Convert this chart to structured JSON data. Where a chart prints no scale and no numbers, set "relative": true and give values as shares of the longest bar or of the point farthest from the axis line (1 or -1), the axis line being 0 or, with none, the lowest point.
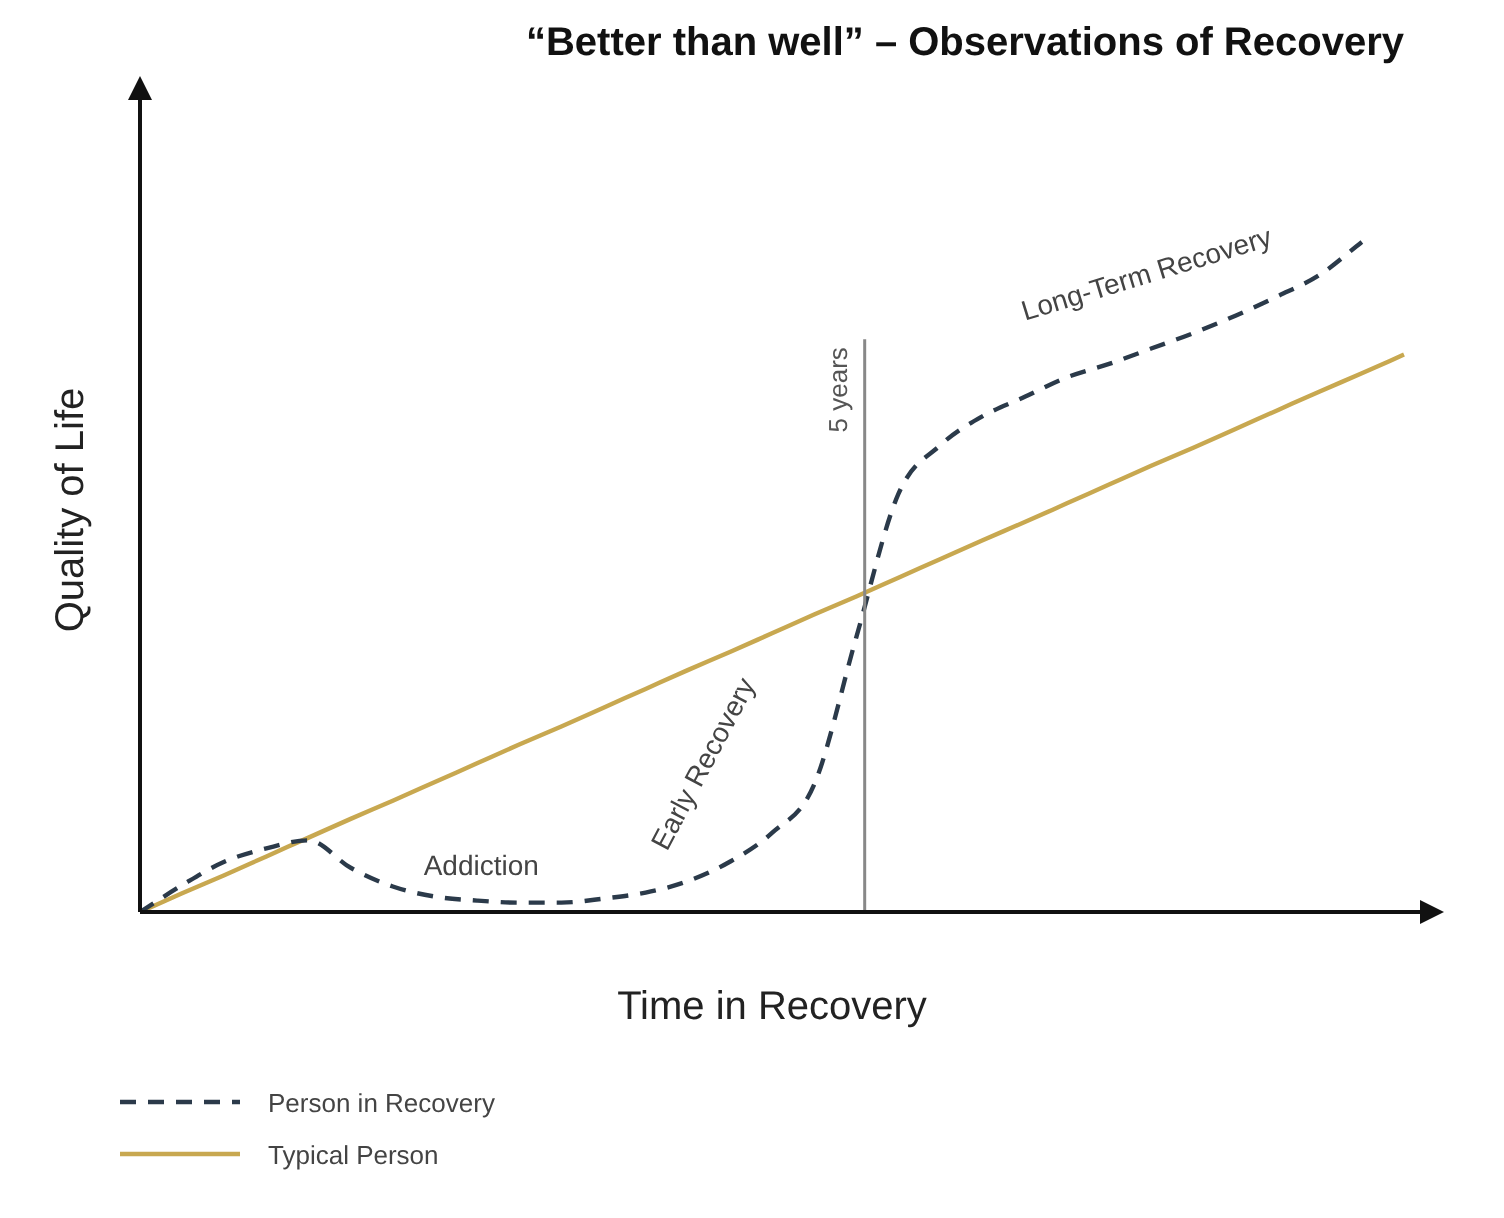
{
  "chart_data": {
    "type": "line",
    "title": "“Better than well” – Observations of Recovery",
    "xlabel": "Time in Recovery",
    "ylabel": "Quality of Life",
    "relative": true,
    "legend": "bottom left",
    "grid": false,
    "marker": "none",
    "categories": [
      null,
      null,
      null,
      null,
      null,
      null,
      null,
      null,
      null,
      null,
      null,
      null,
      null,
      null,
      null,
      null,
      null,
      null,
      null,
      null,
      null,
      null,
      null,
      null,
      null,
      null,
      null,
      null,
      null,
      null,
      null
    ],
    "series": [
      {
        "name": "Person in Recovery",
        "color": "#2b3a4a",
        "line_style": "dashed",
        "values": [
          0,
          0.04,
          0.075,
          0.095,
          0.107,
          0.066,
          0.038,
          0.023,
          0.017,
          0.014,
          0.014,
          0.02,
          0.029,
          0.046,
          0.075,
          0.118,
          0.19,
          0.41,
          0.624,
          0.697,
          0.74,
          0.769,
          0.798,
          0.818,
          0.841,
          0.864,
          0.89,
          0.919,
          0.951,
          1,
          null
        ]
      },
      {
        "name": "Typical Person",
        "color": "#c8a850",
        "line_style": "solid",
        "values": [
          0,
          0.028,
          0.055,
          0.083,
          0.111,
          0.139,
          0.166,
          0.194,
          0.222,
          0.25,
          0.277,
          0.305,
          0.333,
          0.361,
          0.388,
          0.416,
          0.444,
          0.471,
          0.499,
          0.527,
          0.555,
          0.582,
          0.61,
          0.638,
          0.666,
          0.693,
          0.721,
          0.749,
          0.777,
          0.804,
          0.832
        ]
      }
    ],
    "annotations": [
      "Addiction",
      "Early Recovery",
      "5 years",
      "Long-Term Recovery"
    ]
  }
}
